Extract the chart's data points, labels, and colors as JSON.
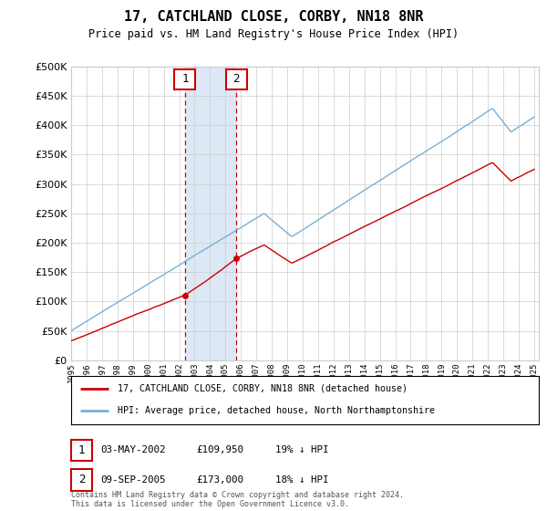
{
  "title": "17, CATCHLAND CLOSE, CORBY, NN18 8NR",
  "subtitle": "Price paid vs. HM Land Registry's House Price Index (HPI)",
  "legend_line1": "17, CATCHLAND CLOSE, CORBY, NN18 8NR (detached house)",
  "legend_line2": "HPI: Average price, detached house, North Northamptonshire",
  "sale1_date": "03-MAY-2002",
  "sale1_price": 109950,
  "sale1_year": 2002.37,
  "sale1_pct": "19% ↓ HPI",
  "sale2_date": "09-SEP-2005",
  "sale2_price": 173000,
  "sale2_year": 2005.7,
  "sale2_pct": "18% ↓ HPI",
  "footer": "Contains HM Land Registry data © Crown copyright and database right 2024.\nThis data is licensed under the Open Government Licence v3.0.",
  "price_color": "#cc0000",
  "hpi_color": "#7bafd4",
  "highlight_color": "#dce8f5",
  "ylim": [
    0,
    500000
  ],
  "yticks": [
    0,
    50000,
    100000,
    150000,
    200000,
    250000,
    300000,
    350000,
    400000,
    450000,
    500000
  ],
  "xlim_start": 1995,
  "xlim_end": 2025.3
}
